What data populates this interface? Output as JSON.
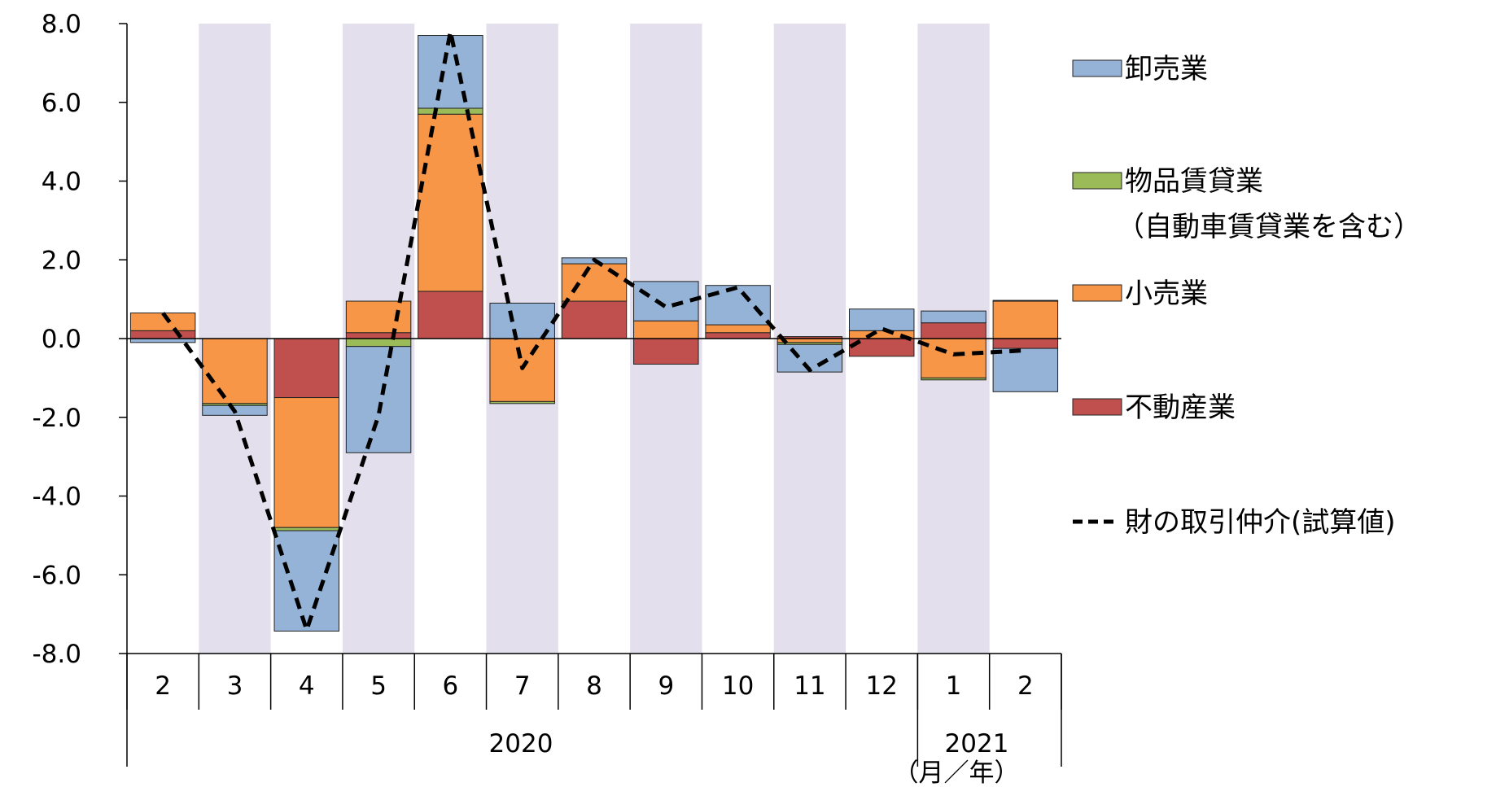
{
  "chart_data": {
    "type": "bar",
    "stacked": true,
    "categories": [
      "2",
      "3",
      "4",
      "5",
      "6",
      "7",
      "8",
      "9",
      "10",
      "11",
      "12",
      "1",
      "2"
    ],
    "year_groups": [
      {
        "label": "2020",
        "from": 0,
        "to": 10
      },
      {
        "label": "2021",
        "from": 11,
        "to": 12
      }
    ],
    "unit_label": "（月／年）",
    "ylim": [
      -8.0,
      8.0
    ],
    "yticks": [
      "8.0",
      "6.0",
      "4.0",
      "2.0",
      "0.0",
      "-2.0",
      "-4.0",
      "-6.0",
      "-8.0"
    ],
    "ytick_values": [
      8,
      6,
      4,
      2,
      0,
      -2,
      -4,
      -6,
      -8
    ],
    "shaded_categories": [
      1,
      3,
      5,
      7,
      9,
      11
    ],
    "series": [
      {
        "name": "不動産業",
        "color": "#c0504d",
        "values": [
          0.2,
          0.0,
          -1.5,
          0.15,
          1.2,
          0.0,
          0.95,
          -0.65,
          0.15,
          0.05,
          -0.45,
          0.4,
          -0.25
        ]
      },
      {
        "name": "小売業",
        "color": "#f79646",
        "values": [
          0.45,
          -1.65,
          -3.3,
          0.8,
          4.5,
          -1.6,
          0.95,
          0.45,
          0.2,
          -0.1,
          0.2,
          -1.0,
          0.95
        ]
      },
      {
        "name": "物品賃貸業",
        "color": "#9bbb59",
        "values": [
          0.0,
          -0.05,
          -0.08,
          -0.2,
          0.15,
          -0.05,
          0.0,
          0.0,
          0.0,
          -0.05,
          0.0,
          -0.05,
          0.02
        ]
      },
      {
        "name": "卸売業",
        "color": "#95b3d7",
        "values": [
          -0.1,
          -0.25,
          -2.55,
          -2.7,
          1.85,
          0.9,
          0.15,
          1.0,
          1.0,
          -0.7,
          0.55,
          0.3,
          -1.1
        ]
      }
    ],
    "line": {
      "name": "財の取引仲介(試算値)",
      "color": "#000000",
      "values": [
        0.65,
        -1.85,
        -7.4,
        -1.95,
        7.8,
        -0.75,
        2.0,
        0.8,
        1.3,
        -0.8,
        0.25,
        -0.4,
        -0.3
      ]
    },
    "legend": {
      "position": "right",
      "items": [
        {
          "key": "wholesale",
          "label": "卸売業",
          "kind": "box",
          "color": "#95b3d7"
        },
        {
          "key": "rental",
          "label": "物品賃貸業",
          "label2": "（自動車賃貸業を含む）",
          "kind": "box",
          "color": "#9bbb59"
        },
        {
          "key": "retail",
          "label": "小売業",
          "kind": "box",
          "color": "#f79646"
        },
        {
          "key": "realestate",
          "label": "不動産業",
          "kind": "box",
          "color": "#c0504d"
        },
        {
          "key": "line",
          "label": "財の取引仲介(試算値)",
          "kind": "dash",
          "color": "#000000"
        }
      ]
    },
    "colors": {
      "shade": "#e4dfec",
      "axis": "#000000",
      "bar_outline": "#222222"
    }
  }
}
